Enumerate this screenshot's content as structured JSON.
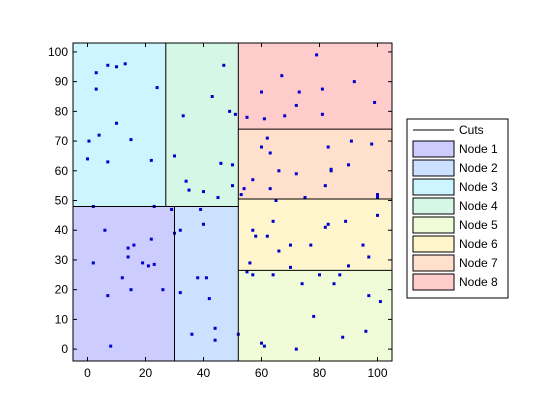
{
  "chart_data": {
    "type": "scatter",
    "title": "",
    "xlabel": "",
    "ylabel": "",
    "xlim": [
      -5,
      105
    ],
    "ylim": [
      -4,
      103
    ],
    "xticks": [
      0,
      20,
      40,
      60,
      80,
      100
    ],
    "yticks": [
      0,
      10,
      20,
      30,
      40,
      50,
      60,
      70,
      80,
      90,
      100
    ],
    "grid": false,
    "legend_position": "right",
    "regions": [
      {
        "name": "Node 1",
        "x": [
          -5,
          30
        ],
        "y": [
          -4,
          48
        ],
        "color": "#ccccff"
      },
      {
        "name": "Node 2",
        "x": [
          30,
          52
        ],
        "y": [
          -4,
          48
        ],
        "color": "#cce0ff"
      },
      {
        "name": "Node 3",
        "x": [
          -5,
          27
        ],
        "y": [
          48,
          103
        ],
        "color": "#ccf5ff"
      },
      {
        "name": "Node 4",
        "x": [
          27,
          52
        ],
        "y": [
          48,
          103
        ],
        "color": "#d5f8e6"
      },
      {
        "name": "Node 5",
        "x": [
          52,
          105
        ],
        "y": [
          -4,
          26.5
        ],
        "color": "#f0fcd8"
      },
      {
        "name": "Node 6",
        "x": [
          52,
          105
        ],
        "y": [
          26.5,
          50.5
        ],
        "color": "#fff5cc"
      },
      {
        "name": "Node 7",
        "x": [
          52,
          105
        ],
        "y": [
          50.5,
          74
        ],
        "color": "#ffe0cc"
      },
      {
        "name": "Node 8",
        "x": [
          52,
          105
        ],
        "y": [
          74,
          103
        ],
        "color": "#ffcccc"
      }
    ],
    "cuts": [
      {
        "x": [
          -5,
          52
        ],
        "y": [
          48,
          48
        ]
      },
      {
        "x": [
          30,
          30
        ],
        "y": [
          -4,
          48
        ]
      },
      {
        "x": [
          27,
          27
        ],
        "y": [
          48,
          103
        ]
      },
      {
        "x": [
          52,
          52
        ],
        "y": [
          -4,
          103
        ]
      },
      {
        "x": [
          52,
          105
        ],
        "y": [
          74,
          74
        ]
      },
      {
        "x": [
          52,
          105
        ],
        "y": [
          50.5,
          50.5
        ]
      },
      {
        "x": [
          52,
          105
        ],
        "y": [
          26.5,
          26.5
        ]
      }
    ],
    "points_color": "#0000cc",
    "points": [
      [
        0,
        64
      ],
      [
        0.5,
        70
      ],
      [
        2,
        48
      ],
      [
        2,
        29
      ],
      [
        3,
        93
      ],
      [
        3,
        87.5
      ],
      [
        4,
        72
      ],
      [
        6,
        40
      ],
      [
        7,
        63
      ],
      [
        7,
        95.5
      ],
      [
        7,
        18
      ],
      [
        8,
        1
      ],
      [
        10,
        95
      ],
      [
        10,
        76
      ],
      [
        12,
        24
      ],
      [
        13,
        96
      ],
      [
        14,
        34
      ],
      [
        14,
        31
      ],
      [
        15,
        70.5
      ],
      [
        15,
        20
      ],
      [
        16,
        35
      ],
      [
        19,
        29
      ],
      [
        21,
        28
      ],
      [
        22,
        63.5
      ],
      [
        22,
        37
      ],
      [
        23,
        48
      ],
      [
        23,
        28.5
      ],
      [
        24,
        88
      ],
      [
        26,
        20
      ],
      [
        29,
        47
      ],
      [
        30,
        65
      ],
      [
        30,
        39
      ],
      [
        32,
        40
      ],
      [
        32,
        19
      ],
      [
        33,
        78.5
      ],
      [
        34,
        56.5
      ],
      [
        35,
        53.5
      ],
      [
        36,
        5
      ],
      [
        38,
        24
      ],
      [
        39,
        47
      ],
      [
        40,
        53
      ],
      [
        40,
        42
      ],
      [
        41,
        24
      ],
      [
        42,
        17
      ],
      [
        43,
        85
      ],
      [
        44,
        7
      ],
      [
        44,
        3
      ],
      [
        45,
        51
      ],
      [
        46,
        62.5
      ],
      [
        47,
        95.5
      ],
      [
        49,
        80
      ],
      [
        50,
        62
      ],
      [
        50,
        55
      ],
      [
        51,
        79
      ],
      [
        52,
        5
      ],
      [
        53,
        52
      ],
      [
        54,
        54
      ],
      [
        55,
        78
      ],
      [
        55,
        26
      ],
      [
        56,
        29
      ],
      [
        57,
        57
      ],
      [
        57,
        40
      ],
      [
        57,
        25
      ],
      [
        58,
        38
      ],
      [
        60,
        86.5
      ],
      [
        60,
        68
      ],
      [
        60,
        2
      ],
      [
        61,
        77.5
      ],
      [
        61,
        1
      ],
      [
        62,
        71
      ],
      [
        62,
        38
      ],
      [
        63,
        66
      ],
      [
        63,
        54
      ],
      [
        64,
        43
      ],
      [
        64,
        25
      ],
      [
        65,
        50
      ],
      [
        66,
        60
      ],
      [
        66,
        33
      ],
      [
        67,
        92
      ],
      [
        68,
        78.5
      ],
      [
        70,
        35
      ],
      [
        70,
        27.5
      ],
      [
        72,
        82
      ],
      [
        72,
        59
      ],
      [
        72,
        0
      ],
      [
        73,
        86.5
      ],
      [
        74,
        22
      ],
      [
        75,
        51
      ],
      [
        77,
        35
      ],
      [
        78,
        11
      ],
      [
        79,
        99
      ],
      [
        80,
        25
      ],
      [
        81,
        87.5
      ],
      [
        81,
        79
      ],
      [
        82,
        55
      ],
      [
        82,
        41
      ],
      [
        83,
        68
      ],
      [
        83,
        42
      ],
      [
        84,
        60
      ],
      [
        84,
        60.5
      ],
      [
        85,
        22
      ],
      [
        87,
        25
      ],
      [
        88,
        4
      ],
      [
        89,
        43
      ],
      [
        90,
        62
      ],
      [
        90,
        28
      ],
      [
        91,
        70
      ],
      [
        92,
        90
      ],
      [
        95,
        35
      ],
      [
        96,
        6
      ],
      [
        97,
        18
      ],
      [
        97,
        31
      ],
      [
        98,
        69
      ],
      [
        99,
        83
      ],
      [
        100,
        45
      ],
      [
        100,
        52
      ],
      [
        100,
        51
      ],
      [
        101,
        16
      ]
    ],
    "legend": [
      "Cuts",
      "Node 1",
      "Node 2",
      "Node 3",
      "Node 4",
      "Node 5",
      "Node 6",
      "Node 7",
      "Node 8"
    ]
  }
}
